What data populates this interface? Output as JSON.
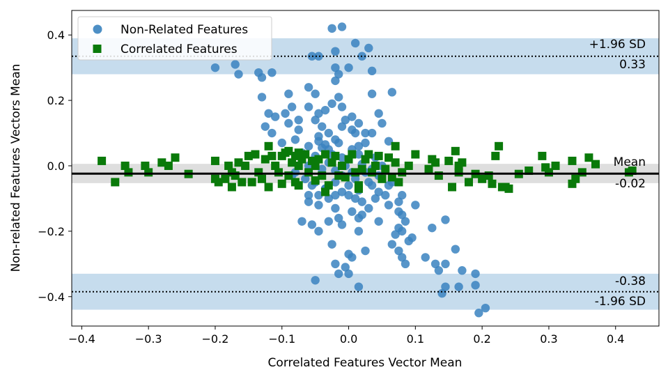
{
  "chart_data": {
    "type": "scatter",
    "title": "",
    "xlabel": "Correlated Features Vector Mean",
    "ylabel": "Non-related Features Vectors Mean",
    "xlim": [
      -0.415,
      0.465
    ],
    "ylim": [
      -0.49,
      0.475
    ],
    "x_ticks": [
      -0.4,
      -0.3,
      -0.2,
      -0.1,
      0.0,
      0.1,
      0.2,
      0.3,
      0.4
    ],
    "x_tick_labels": [
      "−0.4",
      "−0.3",
      "−0.2",
      "−0.1",
      "0.0",
      "0.1",
      "0.2",
      "0.3",
      "0.4"
    ],
    "y_ticks": [
      0.4,
      0.2,
      0.0,
      -0.2,
      -0.4
    ],
    "y_tick_labels": [
      "0.4",
      "0.2",
      "0.0",
      "−0.2",
      "−0.4"
    ],
    "grid": false,
    "legend": {
      "placement": "upper-left",
      "entries": [
        "Non-Related Features",
        "Correlated Features"
      ]
    },
    "colors": {
      "non_related": "#3a83bf",
      "correlated": "#0a7a0a",
      "band_sd": "#c6dced",
      "band_mean": "#dedede"
    },
    "reference_lines": {
      "mean": -0.024,
      "upper_sd": 0.335,
      "lower_sd": -0.385,
      "mean_band": [
        -0.053,
        0.006
      ],
      "upper_band": [
        0.28,
        0.39
      ],
      "lower_band": [
        -0.44,
        -0.33
      ]
    },
    "annotations": {
      "upper_sd_label": "+1.96 SD",
      "upper_sd_value": "0.33",
      "mean_label": "Mean",
      "mean_value": "-0.02",
      "lower_sd_value": "-0.38",
      "lower_sd_label": "-1.96 SD"
    },
    "series": [
      {
        "name": "Non-Related Features",
        "marker": "circle",
        "points": [
          [
            -0.2,
            0.3
          ],
          [
            -0.17,
            0.31
          ],
          [
            -0.165,
            0.28
          ],
          [
            -0.135,
            0.285
          ],
          [
            -0.13,
            0.27
          ],
          [
            -0.115,
            0.285
          ],
          [
            -0.055,
            0.335
          ],
          [
            -0.045,
            0.335
          ],
          [
            -0.025,
            0.42
          ],
          [
            -0.02,
            0.35
          ],
          [
            -0.01,
            0.425
          ],
          [
            0.0,
            0.3
          ],
          [
            0.01,
            0.375
          ],
          [
            0.02,
            0.335
          ],
          [
            0.03,
            0.36
          ],
          [
            0.035,
            0.29
          ],
          [
            -0.02,
            0.3
          ],
          [
            -0.015,
            0.28
          ],
          [
            -0.13,
            0.21
          ],
          [
            -0.09,
            0.22
          ],
          [
            -0.06,
            0.24
          ],
          [
            -0.05,
            0.22
          ],
          [
            -0.02,
            0.26
          ],
          [
            -0.015,
            0.21
          ],
          [
            0.035,
            0.22
          ],
          [
            0.065,
            0.225
          ],
          [
            -0.12,
            0.16
          ],
          [
            -0.11,
            0.15
          ],
          [
            -0.095,
            0.16
          ],
          [
            -0.085,
            0.18
          ],
          [
            -0.075,
            0.14
          ],
          [
            -0.06,
            0.18
          ],
          [
            -0.045,
            0.16
          ],
          [
            -0.035,
            0.17
          ],
          [
            -0.025,
            0.19
          ],
          [
            -0.01,
            0.18
          ],
          [
            0.005,
            0.15
          ],
          [
            0.015,
            0.13
          ],
          [
            0.045,
            0.16
          ],
          [
            -0.125,
            0.12
          ],
          [
            -0.115,
            0.1
          ],
          [
            -0.09,
            0.13
          ],
          [
            -0.075,
            0.11
          ],
          [
            -0.05,
            0.14
          ],
          [
            -0.04,
            0.12
          ],
          [
            -0.03,
            0.1
          ],
          [
            -0.01,
            0.12
          ],
          [
            0.01,
            0.1
          ],
          [
            0.035,
            0.1
          ],
          [
            -0.1,
            0.07
          ],
          [
            -0.08,
            0.08
          ],
          [
            -0.06,
            0.06
          ],
          [
            -0.045,
            0.09
          ],
          [
            -0.03,
            0.05
          ],
          [
            -0.015,
            0.07
          ],
          [
            0.005,
            0.05
          ],
          [
            0.025,
            0.07
          ],
          [
            0.06,
            0.075
          ],
          [
            -0.07,
            0.04
          ],
          [
            -0.05,
            0.03
          ],
          [
            -0.04,
            0.055
          ],
          [
            -0.025,
            0.035
          ],
          [
            -0.01,
            0.025
          ],
          [
            0.015,
            0.035
          ],
          [
            0.04,
            0.025
          ],
          [
            -0.06,
            0.0
          ],
          [
            -0.04,
            -0.01
          ],
          [
            -0.03,
            0.01
          ],
          [
            -0.02,
            -0.015
          ],
          [
            -0.005,
            0.0
          ],
          [
            0.005,
            -0.02
          ],
          [
            0.02,
            0.005
          ],
          [
            0.035,
            -0.01
          ],
          [
            0.05,
            0.0
          ],
          [
            -0.065,
            -0.04
          ],
          [
            -0.05,
            -0.05
          ],
          [
            -0.035,
            -0.07
          ],
          [
            -0.02,
            -0.05
          ],
          [
            -0.01,
            -0.08
          ],
          [
            0.0,
            -0.06
          ],
          [
            0.015,
            -0.075
          ],
          [
            0.03,
            -0.05
          ],
          [
            0.045,
            -0.08
          ],
          [
            0.06,
            -0.06
          ],
          [
            -0.06,
            -0.11
          ],
          [
            -0.045,
            -0.12
          ],
          [
            -0.03,
            -0.1
          ],
          [
            -0.02,
            -0.13
          ],
          [
            0.0,
            -0.09
          ],
          [
            0.02,
            -0.11
          ],
          [
            0.04,
            -0.1
          ],
          [
            0.06,
            -0.12
          ],
          [
            0.075,
            -0.11
          ],
          [
            -0.07,
            -0.17
          ],
          [
            -0.055,
            -0.18
          ],
          [
            -0.045,
            -0.2
          ],
          [
            -0.03,
            -0.17
          ],
          [
            -0.015,
            -0.16
          ],
          [
            -0.01,
            -0.18
          ],
          [
            0.015,
            -0.16
          ],
          [
            0.045,
            -0.17
          ],
          [
            0.075,
            -0.14
          ],
          [
            0.08,
            -0.15
          ],
          [
            0.085,
            -0.17
          ],
          [
            0.075,
            -0.19
          ],
          [
            0.07,
            -0.21
          ],
          [
            0.08,
            -0.2
          ],
          [
            0.09,
            -0.23
          ],
          [
            0.095,
            -0.22
          ],
          [
            0.1,
            -0.12
          ],
          [
            0.065,
            -0.24
          ],
          [
            0.075,
            -0.26
          ],
          [
            0.08,
            -0.28
          ],
          [
            0.085,
            -0.3
          ],
          [
            0.025,
            -0.26
          ],
          [
            -0.025,
            -0.24
          ],
          [
            0.015,
            -0.2
          ],
          [
            0.115,
            -0.28
          ],
          [
            0.125,
            -0.19
          ],
          [
            0.13,
            -0.3
          ],
          [
            0.135,
            -0.32
          ],
          [
            0.145,
            -0.3
          ],
          [
            0.145,
            -0.165
          ],
          [
            0.16,
            -0.255
          ],
          [
            0.17,
            -0.32
          ],
          [
            0.145,
            -0.37
          ],
          [
            0.14,
            -0.39
          ],
          [
            0.165,
            -0.37
          ],
          [
            0.19,
            -0.33
          ],
          [
            0.195,
            -0.45
          ],
          [
            0.205,
            -0.435
          ],
          [
            0.19,
            -0.365
          ],
          [
            -0.05,
            -0.35
          ],
          [
            -0.02,
            -0.3
          ],
          [
            -0.015,
            -0.33
          ],
          [
            -0.005,
            -0.31
          ],
          [
            0.0,
            -0.33
          ],
          [
            0.005,
            -0.28
          ],
          [
            0.015,
            -0.37
          ],
          [
            0.0,
            -0.27
          ],
          [
            -0.035,
            -0.07
          ],
          [
            -0.02,
            -0.09
          ],
          [
            -0.01,
            -0.03
          ],
          [
            0.01,
            -0.04
          ],
          [
            0.025,
            -0.02
          ],
          [
            0.045,
            -0.03
          ],
          [
            0.055,
            -0.09
          ],
          [
            0.065,
            -0.05
          ],
          [
            0.08,
            -0.09
          ],
          [
            -0.08,
            -0.02
          ],
          [
            -0.085,
            -0.03
          ],
          [
            -0.055,
            -0.06
          ],
          [
            -0.045,
            -0.09
          ],
          [
            0.03,
            -0.13
          ],
          [
            0.005,
            -0.14
          ],
          [
            0.02,
            -0.15
          ],
          [
            -0.06,
            -0.09
          ],
          [
            0.05,
            0.13
          ],
          [
            -0.045,
            0.075
          ],
          [
            -0.035,
            0.065
          ],
          [
            -0.02,
            0.08
          ],
          [
            0.015,
            0.06
          ],
          [
            0.025,
            0.1
          ],
          [
            0.01,
            -0.1
          ],
          [
            0.035,
            -0.06
          ],
          [
            -0.005,
            0.14
          ],
          [
            0.005,
            0.11
          ]
        ]
      },
      {
        "name": "Correlated Features",
        "marker": "square",
        "points": [
          [
            -0.37,
            0.015
          ],
          [
            -0.35,
            -0.05
          ],
          [
            -0.335,
            0.0
          ],
          [
            -0.33,
            -0.02
          ],
          [
            -0.305,
            0.0
          ],
          [
            -0.3,
            -0.02
          ],
          [
            -0.28,
            0.01
          ],
          [
            -0.27,
            0.0
          ],
          [
            -0.26,
            0.025
          ],
          [
            -0.24,
            -0.025
          ],
          [
            -0.2,
            0.015
          ],
          [
            -0.2,
            -0.04
          ],
          [
            -0.195,
            -0.05
          ],
          [
            -0.185,
            -0.04
          ],
          [
            -0.18,
            0.0
          ],
          [
            -0.175,
            -0.02
          ],
          [
            -0.175,
            -0.065
          ],
          [
            -0.17,
            -0.03
          ],
          [
            -0.165,
            0.01
          ],
          [
            -0.16,
            -0.05
          ],
          [
            -0.155,
            0.0
          ],
          [
            -0.15,
            0.03
          ],
          [
            -0.145,
            -0.05
          ],
          [
            -0.14,
            0.035
          ],
          [
            -0.135,
            -0.02
          ],
          [
            -0.13,
            -0.04
          ],
          [
            -0.125,
            0.02
          ],
          [
            -0.12,
            0.06
          ],
          [
            -0.12,
            -0.065
          ],
          [
            -0.115,
            0.03
          ],
          [
            -0.11,
            0.0
          ],
          [
            -0.105,
            -0.02
          ],
          [
            -0.1,
            0.03
          ],
          [
            -0.1,
            -0.055
          ],
          [
            -0.095,
            0.04
          ],
          [
            -0.09,
            0.045
          ],
          [
            -0.09,
            -0.03
          ],
          [
            -0.085,
            0.01
          ],
          [
            -0.08,
            0.03
          ],
          [
            -0.08,
            -0.05
          ],
          [
            -0.075,
            0.04
          ],
          [
            -0.075,
            0.0
          ],
          [
            -0.07,
            0.02
          ],
          [
            -0.065,
            0.035
          ],
          [
            -0.06,
            -0.02
          ],
          [
            -0.055,
            0.015
          ],
          [
            -0.05,
            0.0
          ],
          [
            -0.05,
            -0.045
          ],
          [
            -0.045,
            0.02
          ],
          [
            -0.04,
            -0.03
          ],
          [
            -0.035,
            0.035
          ],
          [
            -0.03,
            -0.06
          ],
          [
            -0.025,
            0.01
          ],
          [
            -0.02,
            0.03
          ],
          [
            -0.015,
            -0.03
          ],
          [
            -0.01,
            0.0
          ],
          [
            -0.005,
            -0.035
          ],
          [
            0.0,
            0.02
          ],
          [
            0.005,
            0.035
          ],
          [
            0.01,
            -0.02
          ],
          [
            0.015,
            -0.06
          ],
          [
            0.02,
            -0.01
          ],
          [
            0.025,
            0.02
          ],
          [
            0.03,
            0.035
          ],
          [
            0.035,
            -0.02
          ],
          [
            0.04,
            0.0
          ],
          [
            0.045,
            0.03
          ],
          [
            0.05,
            -0.04
          ],
          [
            0.055,
            -0.01
          ],
          [
            0.06,
            0.025
          ],
          [
            0.065,
            -0.035
          ],
          [
            0.07,
            0.01
          ],
          [
            0.075,
            -0.05
          ],
          [
            0.08,
            -0.02
          ],
          [
            0.09,
            0.0
          ],
          [
            0.1,
            0.035
          ],
          [
            0.12,
            -0.01
          ],
          [
            0.125,
            0.02
          ],
          [
            0.13,
            0.01
          ],
          [
            0.135,
            -0.03
          ],
          [
            0.15,
            0.015
          ],
          [
            0.155,
            -0.065
          ],
          [
            0.16,
            0.045
          ],
          [
            0.165,
            -0.02
          ],
          [
            0.165,
            0.0
          ],
          [
            0.17,
            0.01
          ],
          [
            0.18,
            -0.05
          ],
          [
            0.19,
            -0.025
          ],
          [
            0.2,
            -0.04
          ],
          [
            0.21,
            -0.03
          ],
          [
            0.215,
            -0.055
          ],
          [
            0.22,
            0.03
          ],
          [
            0.225,
            0.06
          ],
          [
            0.23,
            -0.065
          ],
          [
            0.235,
            -0.065
          ],
          [
            0.24,
            -0.07
          ],
          [
            0.255,
            -0.025
          ],
          [
            0.27,
            -0.015
          ],
          [
            0.29,
            0.03
          ],
          [
            0.295,
            -0.005
          ],
          [
            0.3,
            -0.02
          ],
          [
            0.31,
            0.0
          ],
          [
            0.335,
            0.015
          ],
          [
            0.335,
            -0.055
          ],
          [
            0.34,
            -0.04
          ],
          [
            0.35,
            -0.02
          ],
          [
            0.36,
            0.025
          ],
          [
            0.37,
            0.005
          ],
          [
            0.42,
            -0.02
          ],
          [
            0.425,
            -0.015
          ],
          [
            0.07,
            0.06
          ],
          [
            -0.075,
            -0.06
          ],
          [
            -0.035,
            -0.08
          ],
          [
            0.015,
            -0.07
          ]
        ]
      }
    ]
  }
}
